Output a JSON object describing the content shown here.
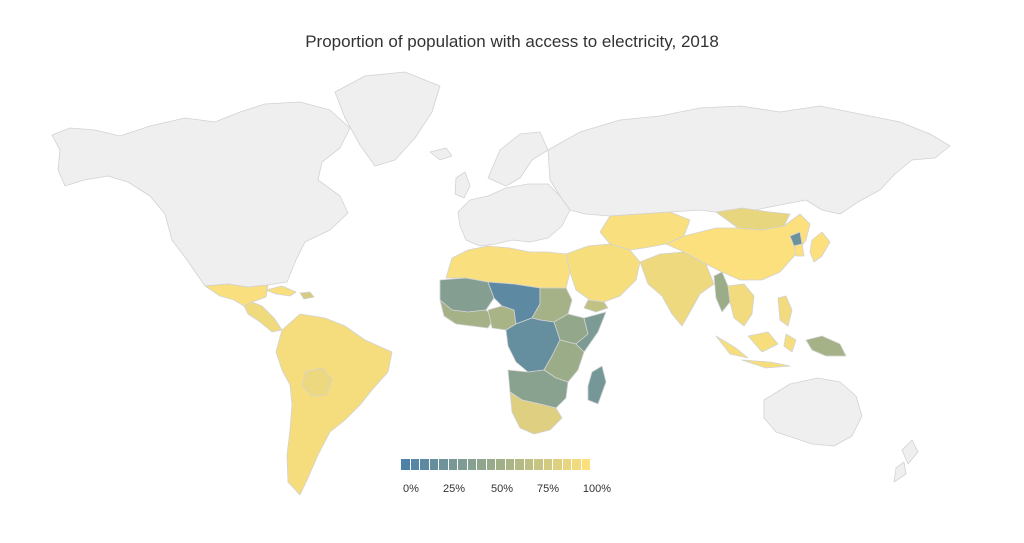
{
  "map": {
    "title": "Proportion of population with access to electricity, 2018",
    "colors": {
      "no_data": "#efefef",
      "border": "#d2d2d2",
      "scale_low": "#4e81a8",
      "scale_high": "#fbe07d"
    }
  },
  "legend": {
    "ticks": [
      "0%",
      "25%",
      "50%",
      "75%",
      "100%"
    ],
    "tick_values": [
      0,
      25,
      50,
      75,
      100
    ],
    "steps": 20
  },
  "regions": [
    {
      "name": "north-america",
      "value": null
    },
    {
      "name": "greenland",
      "value": null
    },
    {
      "name": "mexico",
      "value": 99
    },
    {
      "name": "central-america",
      "value": 94
    },
    {
      "name": "cuba",
      "value": 99
    },
    {
      "name": "hispaniola",
      "value": 80
    },
    {
      "name": "south-america",
      "value": 97
    },
    {
      "name": "bolivia",
      "value": 92
    },
    {
      "name": "europe",
      "value": null
    },
    {
      "name": "scandinavia",
      "value": null
    },
    {
      "name": "iceland",
      "value": null
    },
    {
      "name": "britain",
      "value": null
    },
    {
      "name": "russia",
      "value": null
    },
    {
      "name": "north-africa",
      "value": 99
    },
    {
      "name": "west-africa-sahel",
      "value": 35
    },
    {
      "name": "west-africa-coast",
      "value": 55
    },
    {
      "name": "nigeria",
      "value": 57
    },
    {
      "name": "central-africa",
      "value": 10
    },
    {
      "name": "sudan",
      "value": 55
    },
    {
      "name": "ethiopia",
      "value": 45
    },
    {
      "name": "somalia",
      "value": 30
    },
    {
      "name": "congo-basin",
      "value": 15
    },
    {
      "name": "east-africa",
      "value": 50
    },
    {
      "name": "southern-central-africa",
      "value": 38
    },
    {
      "name": "southern-africa",
      "value": 85
    },
    {
      "name": "madagascar",
      "value": 26
    },
    {
      "name": "middle-east",
      "value": 98
    },
    {
      "name": "yemen",
      "value": 70
    },
    {
      "name": "central-asia",
      "value": 99
    },
    {
      "name": "mongolia",
      "value": 90
    },
    {
      "name": "south-asia",
      "value": 93
    },
    {
      "name": "myanmar",
      "value": 50
    },
    {
      "name": "china",
      "value": 100
    },
    {
      "name": "north-korea",
      "value": 20
    },
    {
      "name": "south-korea-japan",
      "value": 100
    },
    {
      "name": "southeast-asia",
      "value": 95
    },
    {
      "name": "indonesia",
      "value": 98
    },
    {
      "name": "philippines",
      "value": 95
    },
    {
      "name": "papua-new-guinea",
      "value": 55
    },
    {
      "name": "australia",
      "value": null
    },
    {
      "name": "new-zealand",
      "value": null
    }
  ]
}
